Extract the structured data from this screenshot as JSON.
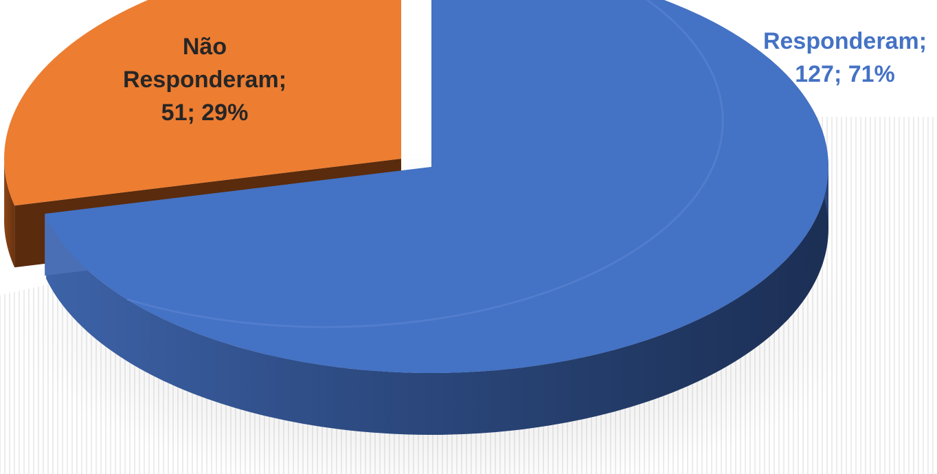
{
  "chart_data": {
    "type": "pie",
    "style": "3d-exploded",
    "slices": [
      {
        "name": "Responderam",
        "value": 127,
        "percent": 71,
        "color": "#4472c4",
        "label_lines": [
          "Responderam;",
          "127; 71%"
        ],
        "label_color": "#4472c4"
      },
      {
        "name": "Não Responderam",
        "value": 51,
        "percent": 29,
        "color": "#ed7d31",
        "label_lines": [
          "Não",
          "Responderam;",
          "51; 29%"
        ],
        "label_color": "#262626"
      }
    ],
    "legend": "none"
  }
}
